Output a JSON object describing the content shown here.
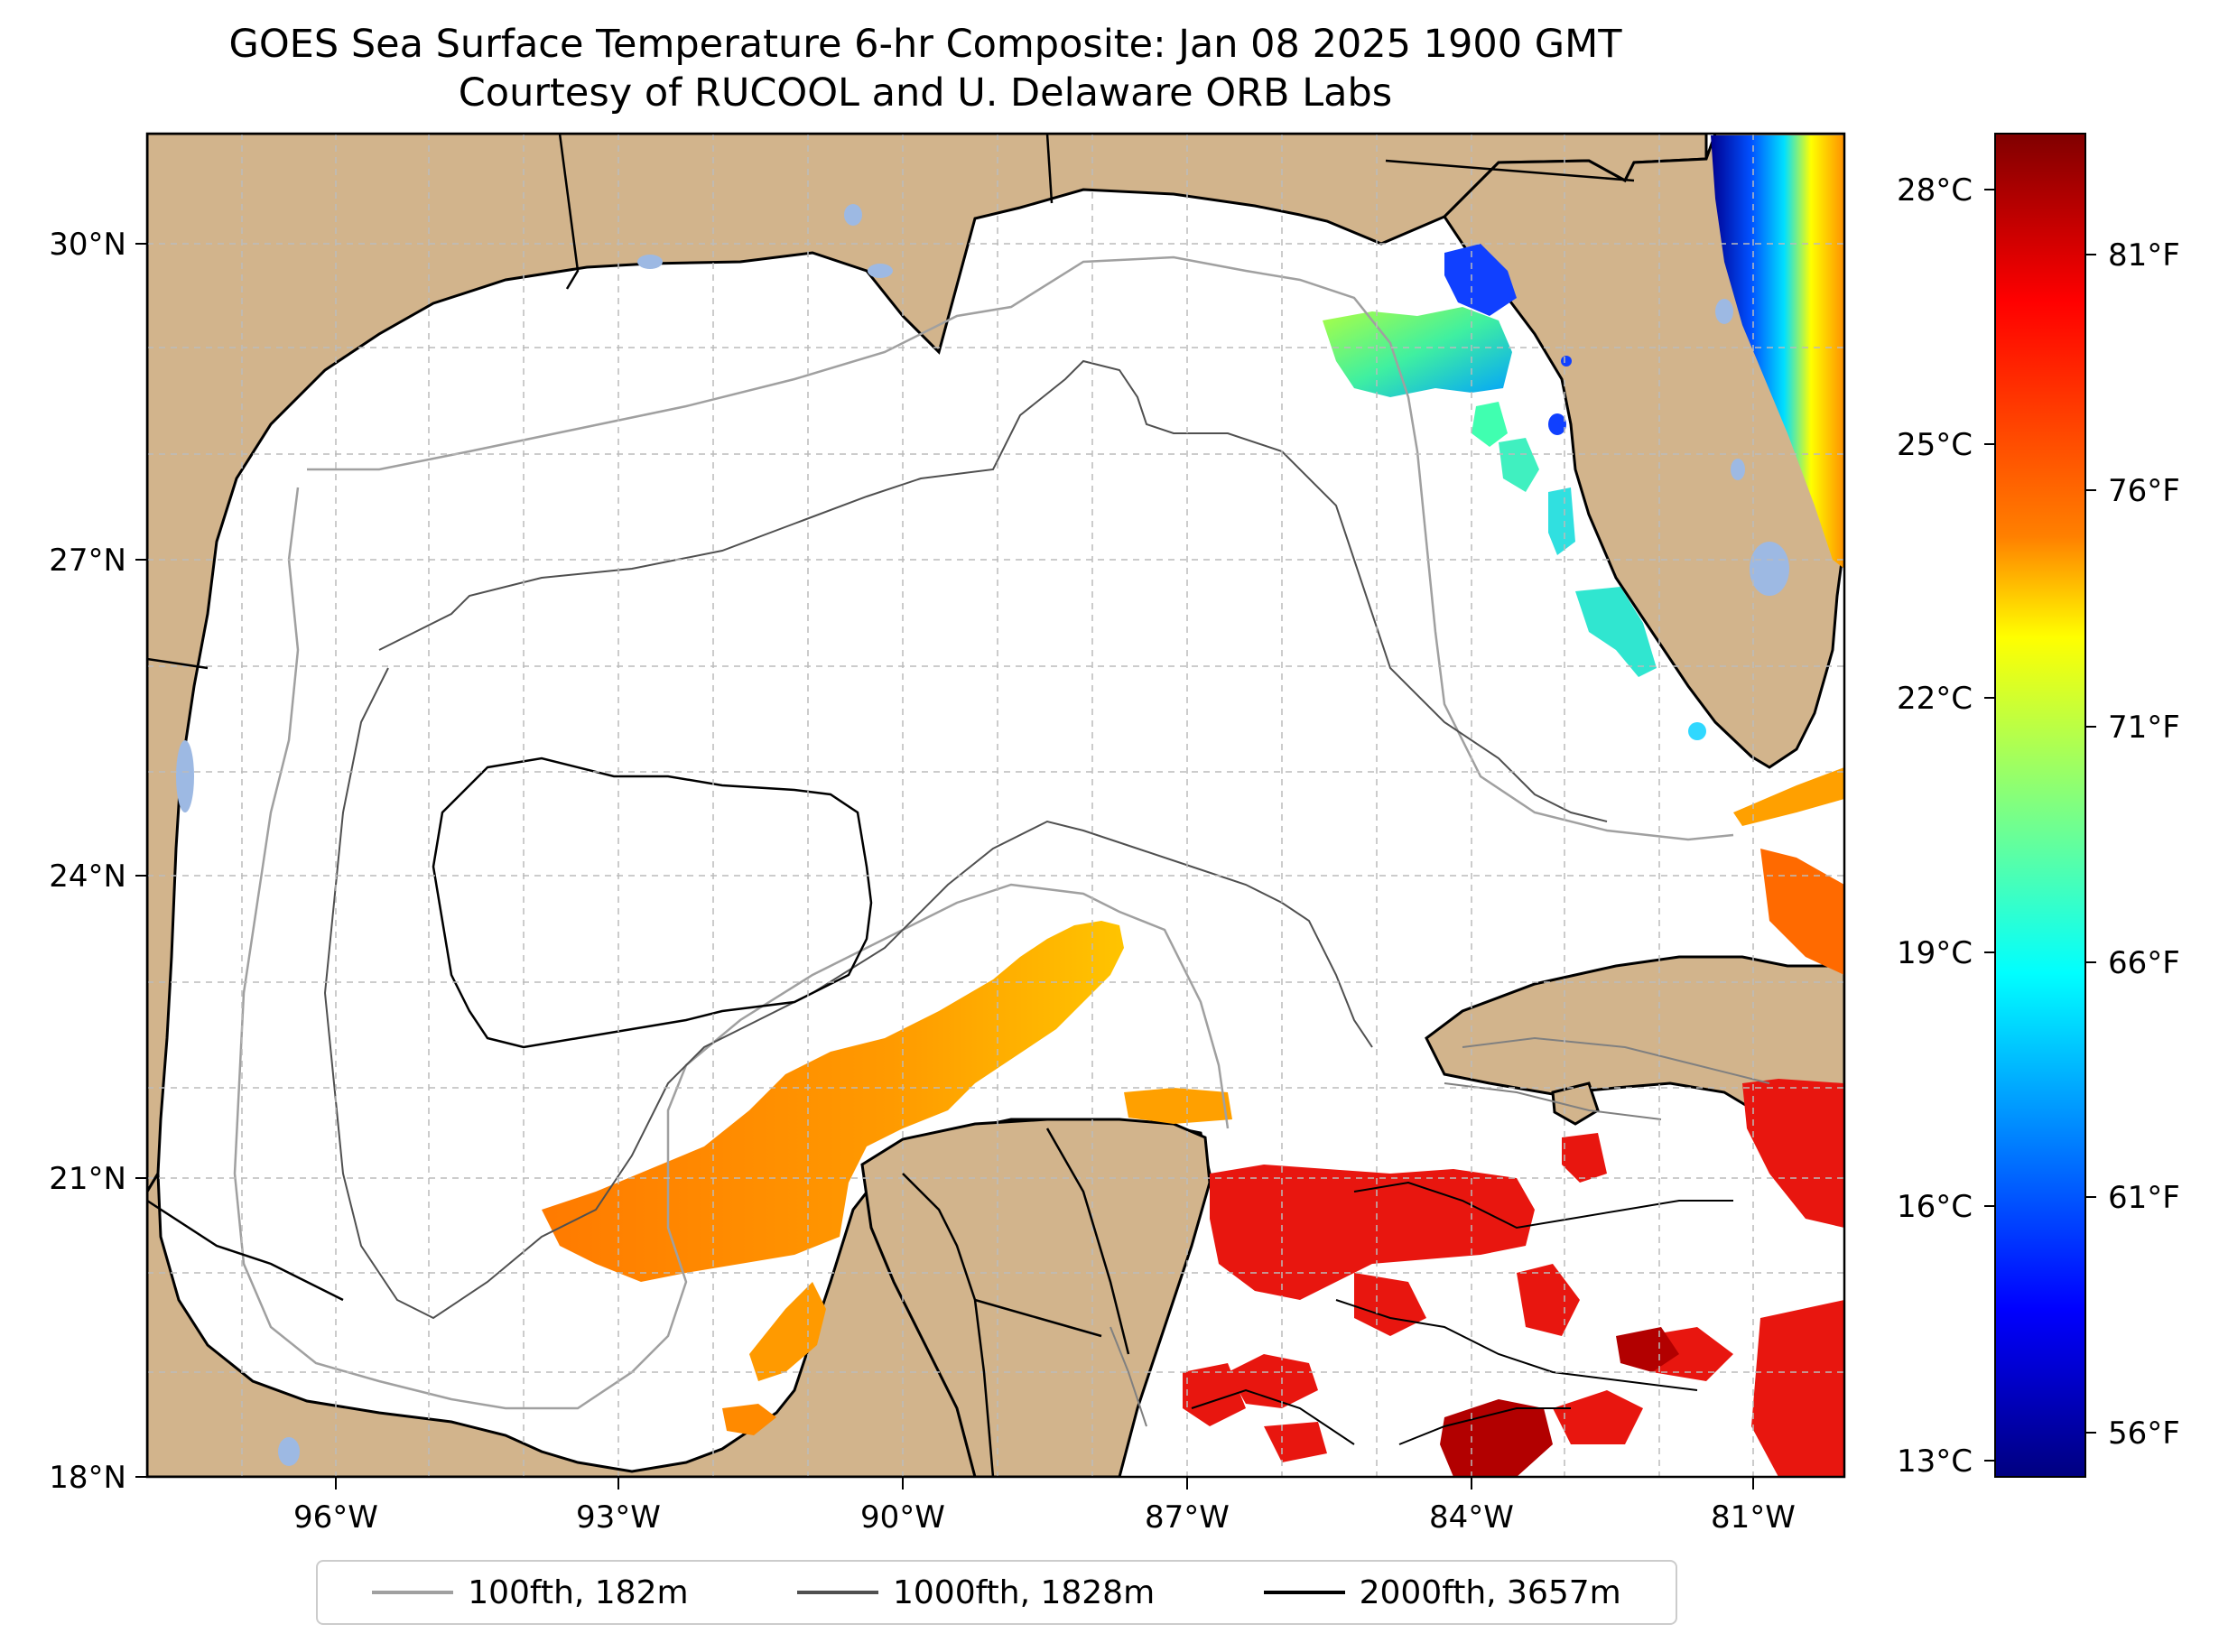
{
  "title": {
    "line1": "GOES Sea Surface Temperature 6-hr Composite: Jan 08 2025 1900 GMT",
    "line2": "Courtesy of RUCOOL and U. Delaware ORB Labs"
  },
  "map": {
    "lat_range_deg": [
      18,
      31
    ],
    "lon_range_deg": [
      -98,
      -80
    ],
    "lat_ticks": [
      "30°N",
      "27°N",
      "24°N",
      "21°N",
      "18°N"
    ],
    "lon_ticks": [
      "96°W",
      "93°W",
      "90°W",
      "87°W",
      "84°W",
      "81°W"
    ],
    "colors": {
      "land": "#d2b48c",
      "lakes": "#9db9e3",
      "ocean": "#ffffff",
      "grid": "#bbbbbb"
    }
  },
  "sst_regions": [
    {
      "region": "northeast-gulf",
      "temp_f": 68,
      "color": "#7dfa80"
    },
    {
      "region": "big-bend",
      "temp_f": 60,
      "color": "#0040ff"
    },
    {
      "region": "florida-shelf",
      "temp_f": 66,
      "color": "#2de6d0"
    },
    {
      "region": "florida-atlantic-coast",
      "temp_f": 58,
      "color": "#0018d8"
    },
    {
      "region": "campeche-bank",
      "temp_f": 77,
      "color": "#ff9a00"
    },
    {
      "region": "florida-keys",
      "temp_f": 78,
      "color": "#ff6a00"
    },
    {
      "region": "caribbean",
      "temp_f": 81,
      "color": "#e8160f"
    },
    {
      "region": "caribbean-south",
      "temp_f": 83,
      "color": "#b20000"
    }
  ],
  "colorbar": {
    "celsius_ticks": [
      "28°C",
      "25°C",
      "22°C",
      "19°C",
      "16°C",
      "13°C"
    ],
    "fahrenheit_ticks": [
      "81°F",
      "76°F",
      "71°F",
      "66°F",
      "61°F",
      "56°F"
    ],
    "colormap": [
      "#800000",
      "#ff0000",
      "#ff8000",
      "#ffff00",
      "#80ff80",
      "#00ffff",
      "#0080ff",
      "#0000ff",
      "#000080"
    ]
  },
  "legend": {
    "items": [
      {
        "label": "100fth, 182m",
        "color": "#a0a0a0"
      },
      {
        "label": "1000fth, 1828m",
        "color": "#505050"
      },
      {
        "label": "2000fth, 3657m",
        "color": "#000000"
      }
    ]
  }
}
